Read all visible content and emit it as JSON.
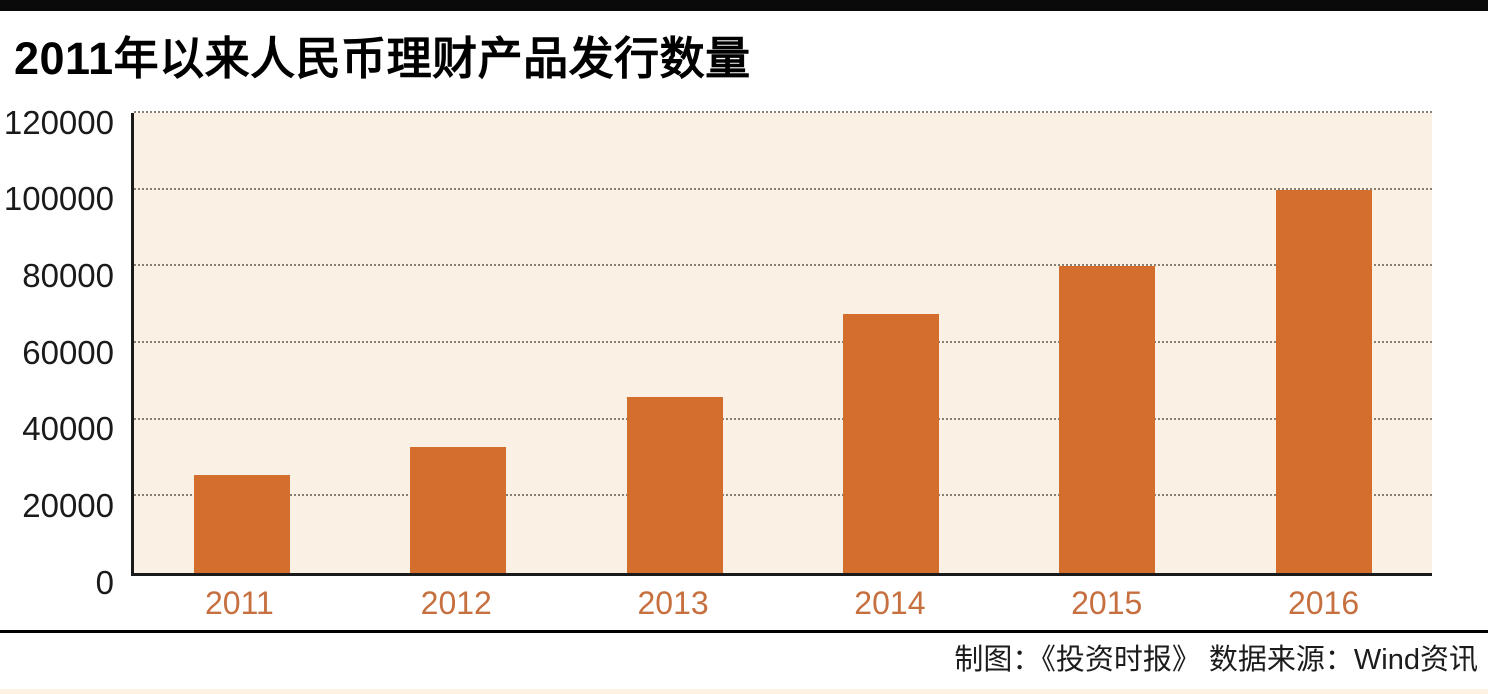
{
  "header": {
    "title": "2011年以来人民币理财产品发行数量"
  },
  "chart_data": {
    "type": "bar",
    "title": "2011年以来人民币理财产品发行数量",
    "categories": [
      "2011",
      "2012",
      "2013",
      "2014",
      "2015",
      "2016"
    ],
    "values": [
      25500,
      33000,
      46000,
      67500,
      80000,
      100000
    ],
    "y_ticks": [
      0,
      20000,
      40000,
      60000,
      80000,
      100000,
      120000
    ],
    "ylim": [
      0,
      120000
    ],
    "xlabel": "",
    "ylabel": "",
    "grid": "horizontal-dotted",
    "legend": "none",
    "colors": {
      "bar": "#d46e2c",
      "plot_background": "#faf0e4",
      "gridline": "#8a7f73",
      "axis": "#1a1a1a",
      "x_tick_label": "#c67040",
      "y_tick_label": "#1a1a1a",
      "top_accent_bar": "#0a0a0a",
      "footer_divider": "#000000",
      "bottom_strip": "#fbf2e4"
    }
  },
  "footer": {
    "credit": "制图：《投资时报》  数据来源：Wind资讯"
  }
}
